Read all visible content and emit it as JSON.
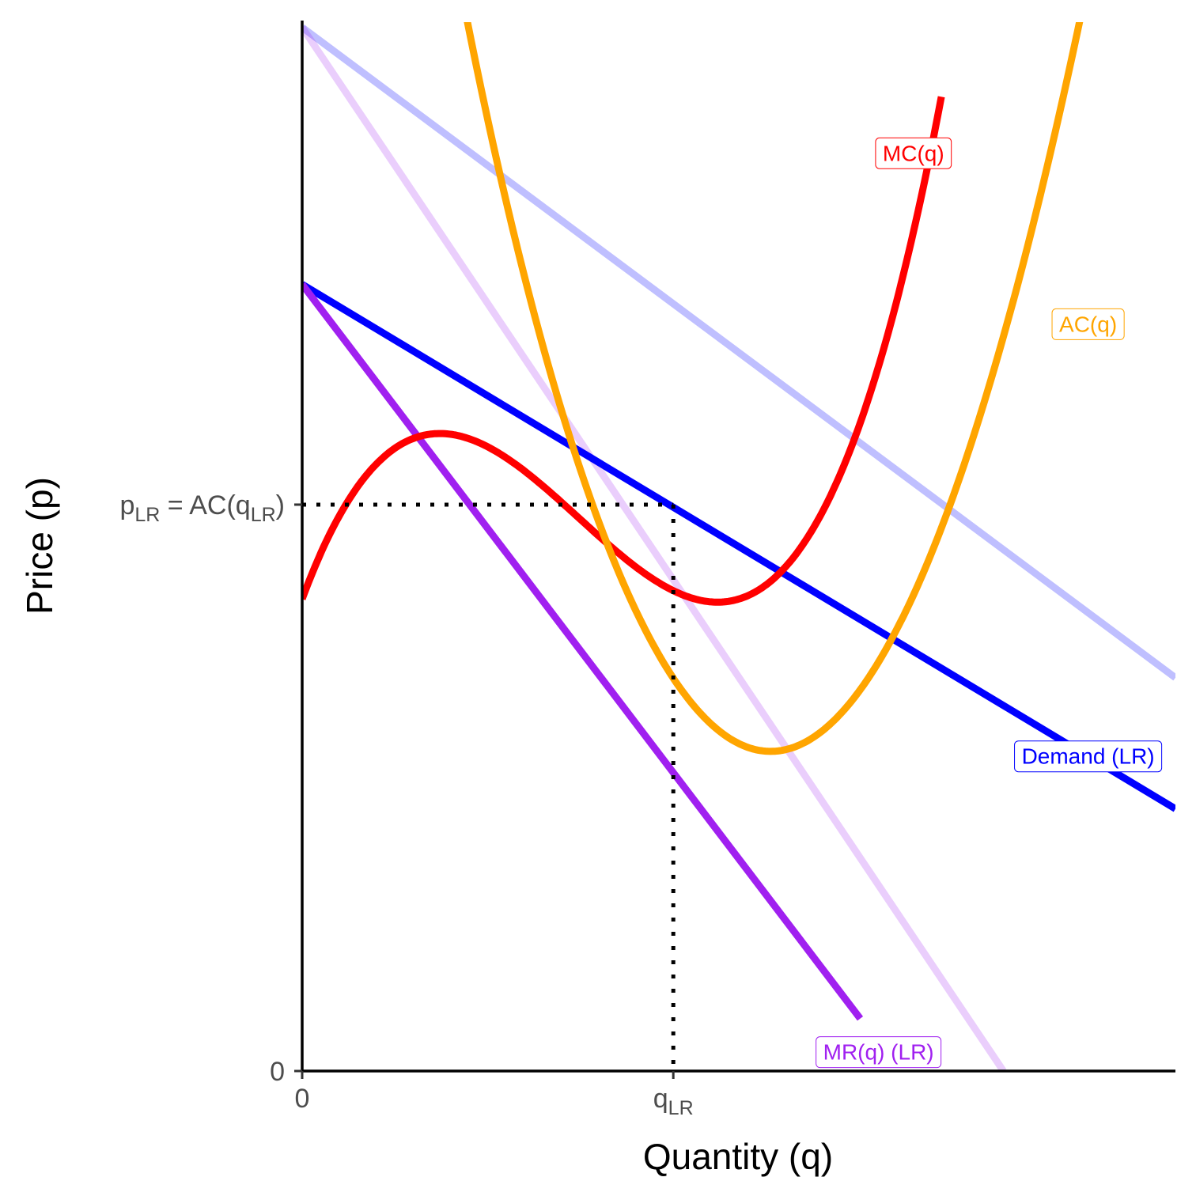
{
  "chart_data": {
    "type": "line",
    "xlabel": "Quantity (q)",
    "ylabel": "Price (p)",
    "xlim": [
      0,
      10
    ],
    "ylim": [
      0,
      10
    ],
    "grid": false,
    "legend": "none",
    "x_ticks": [
      {
        "x": 0,
        "label": "0"
      },
      {
        "x": 4.25,
        "label": "q",
        "sub": "LR"
      }
    ],
    "y_ticks": [
      {
        "y": 0,
        "label": "0"
      },
      {
        "y": 5.4,
        "label_parts": [
          "p",
          "LR",
          " = AC(q",
          "LR",
          ")"
        ]
      }
    ],
    "reference_lines": [
      {
        "from": [
          0,
          5.4
        ],
        "to": [
          4.25,
          5.4
        ],
        "style": "dotted"
      },
      {
        "from": [
          4.25,
          5.4
        ],
        "to": [
          4.25,
          0
        ],
        "style": "dotted"
      }
    ],
    "series": [
      {
        "name": "",
        "kind": "line",
        "color": "#0000ff",
        "opacity": 0.25,
        "points": [
          [
            0,
            9.95
          ],
          [
            10,
            3.75
          ]
        ]
      },
      {
        "name": "",
        "kind": "line",
        "color": "#a020f0",
        "opacity": 0.22,
        "points": [
          [
            0,
            9.95
          ],
          [
            8.03,
            0
          ]
        ]
      },
      {
        "name": "Demand (LR)",
        "kind": "line",
        "color": "#0000ff",
        "opacity": 1,
        "points": [
          [
            0,
            7.5
          ],
          [
            10,
            2.5
          ]
        ],
        "label_at": [
          9,
          3.0
        ]
      },
      {
        "name": "MR(q) (LR)",
        "kind": "line",
        "color": "#a020f0",
        "opacity": 1,
        "points": [
          [
            0,
            7.5
          ],
          [
            6.39,
            0.5
          ]
        ],
        "label_at": [
          6.6,
          0.18
        ]
      },
      {
        "name": "MC(q)",
        "kind": "function",
        "color": "#ff0000",
        "opacity": 1,
        "fn": {
          "form": "cubic",
          "a": 0.1,
          "b": -0.95,
          "c": 2.25,
          "d": 4.5
        },
        "x_range": [
          0,
          7.32
        ],
        "label_at": [
          7.0,
          8.75
        ]
      },
      {
        "name": "AC(q)",
        "kind": "function",
        "color": "#ffa500",
        "opacity": 1,
        "fn": {
          "form": "quad_over",
          "a": 0.55,
          "b": -5.85,
          "c": 18.33,
          "k": 1.46
        },
        "x_range": [
          1.57,
          10
        ],
        "label_at": [
          9.0,
          7.12
        ]
      }
    ]
  }
}
